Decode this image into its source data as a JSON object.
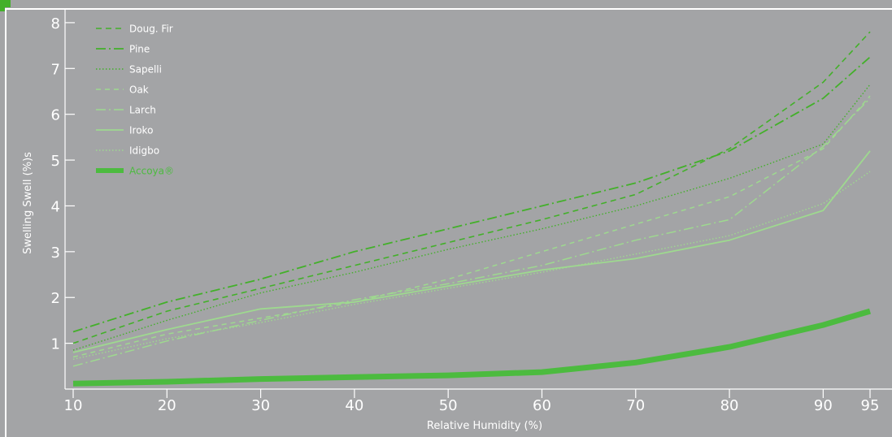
{
  "chart_data": {
    "type": "line",
    "title": "",
    "xlabel": "Relative Humidity (%)",
    "ylabel": "Swelling Swell (%)s",
    "x": [
      10,
      20,
      30,
      40,
      50,
      60,
      70,
      80,
      90,
      95
    ],
    "x_tick_labels": [
      "10",
      "20",
      "30",
      "40",
      "50",
      "60",
      "70",
      "80",
      "90",
      "95"
    ],
    "y_tick_labels": [
      "1",
      "2",
      "3",
      "4",
      "5",
      "6",
      "7",
      "8"
    ],
    "ylim": [
      0,
      8.3
    ],
    "grid": false,
    "legend_position": "top-left",
    "series": [
      {
        "name": "Doug. Fir",
        "color": "#43b02a",
        "dash": "7,5",
        "width": 1.6,
        "values": [
          1.0,
          1.7,
          2.2,
          2.7,
          3.2,
          3.7,
          4.25,
          5.25,
          6.7,
          7.8
        ]
      },
      {
        "name": "Pine",
        "color": "#43b02a",
        "dash": "12,4,2,4",
        "width": 1.8,
        "values": [
          1.25,
          1.9,
          2.4,
          3.0,
          3.5,
          4.0,
          4.5,
          5.2,
          6.35,
          7.25
        ]
      },
      {
        "name": "Sapelli",
        "color": "#43b02a",
        "dash": "1.5,2.5",
        "width": 1.4,
        "values": [
          0.85,
          1.5,
          2.1,
          2.55,
          3.05,
          3.5,
          4.0,
          4.6,
          5.35,
          6.65
        ]
      },
      {
        "name": "Oak",
        "color": "#9ed98f",
        "dash": "6,5",
        "width": 1.5,
        "values": [
          0.7,
          1.2,
          1.55,
          1.9,
          2.4,
          3.0,
          3.6,
          4.2,
          5.25,
          6.4
        ]
      },
      {
        "name": "Larch",
        "color": "#9ed98f",
        "dash": "12,4,2,4",
        "width": 1.5,
        "values": [
          0.5,
          1.05,
          1.5,
          1.95,
          2.3,
          2.7,
          3.25,
          3.7,
          5.3,
          6.35
        ]
      },
      {
        "name": "Iroko",
        "color": "#9ed98f",
        "dash": "",
        "width": 1.8,
        "values": [
          0.8,
          1.3,
          1.75,
          1.9,
          2.25,
          2.6,
          2.85,
          3.25,
          3.9,
          5.2
        ]
      },
      {
        "name": "Idigbo",
        "color": "#9ed98f",
        "dash": "1.5,2.5",
        "width": 1.4,
        "values": [
          0.65,
          1.1,
          1.45,
          1.85,
          2.2,
          2.55,
          2.95,
          3.35,
          4.05,
          4.75
        ]
      },
      {
        "name": "Accoya®",
        "color": "#4cbb3f",
        "dash": "",
        "width": 7,
        "values": [
          0.12,
          0.16,
          0.22,
          0.26,
          0.3,
          0.37,
          0.58,
          0.92,
          1.4,
          1.7
        ]
      }
    ]
  }
}
